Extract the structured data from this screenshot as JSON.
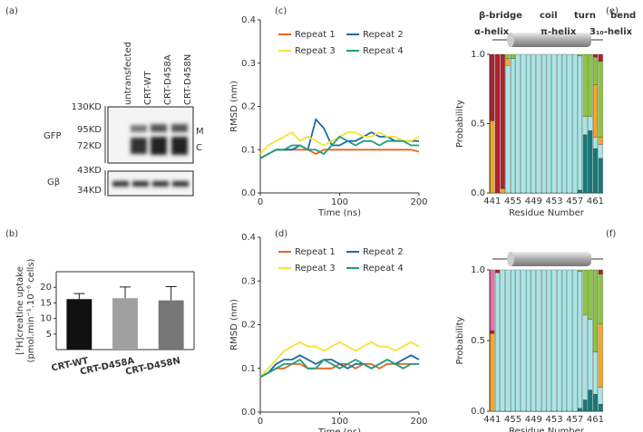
{
  "blot": {
    "panel_label": "(a)",
    "lanes": [
      "untransfected",
      "CRT-WT",
      "CRT-D458A",
      "CRT-D458N"
    ],
    "markers": [
      "130KD",
      "95KD",
      "72KD",
      "43KD",
      "34KD"
    ],
    "rows": [
      "GFP",
      "Gβ"
    ],
    "bands": [
      "M",
      "C"
    ]
  },
  "chart_data": [
    {
      "type": "bar",
      "panel_label": "(b)",
      "y_label": [
        "[³H]creatine uptake",
        "(pmol.min⁻¹.10⁻⁶ cells)"
      ],
      "categories": [
        "CRT-WT",
        "CRT-D458A",
        "CRT-D458N"
      ],
      "values": [
        16.2,
        16.5,
        15.8
      ],
      "errors": [
        1.8,
        3.6,
        4.4
      ],
      "colors": [
        "#111111",
        "#a0a0a0",
        "#767676"
      ],
      "ylim": [
        0,
        25
      ],
      "yticks": [
        5,
        10,
        15,
        20
      ]
    },
    {
      "type": "line",
      "panel_label": "(c)",
      "x_label": "Time (ns)",
      "y_label": "RMSD (nm)",
      "x": [
        0,
        10,
        20,
        30,
        40,
        50,
        60,
        70,
        80,
        90,
        100,
        110,
        120,
        130,
        140,
        150,
        160,
        170,
        180,
        190,
        200
      ],
      "xlim": [
        0,
        200
      ],
      "xticks": [
        0,
        100,
        200
      ],
      "ylim": [
        0,
        0.4
      ],
      "yticks": [
        {
          "value": 0,
          "label": "0.0"
        },
        0.1,
        0.2,
        0.3,
        0.4
      ],
      "series": [
        {
          "name": "Repeat 1",
          "color": "#e8641e",
          "values": [
            0.08,
            0.09,
            0.1,
            0.1,
            0.1,
            0.1,
            0.1,
            0.09,
            0.1,
            0.1,
            0.1,
            0.1,
            0.1,
            0.1,
            0.1,
            0.1,
            0.1,
            0.1,
            0.1,
            0.1,
            0.095
          ]
        },
        {
          "name": "Repeat 2",
          "color": "#1a6aa8",
          "values": [
            0.08,
            0.09,
            0.1,
            0.1,
            0.1,
            0.11,
            0.1,
            0.17,
            0.15,
            0.11,
            0.11,
            0.12,
            0.12,
            0.13,
            0.14,
            0.13,
            0.13,
            0.12,
            0.12,
            0.12,
            0.12
          ]
        },
        {
          "name": "Repeat 3",
          "color": "#f2e339",
          "values": [
            0.09,
            0.11,
            0.12,
            0.13,
            0.14,
            0.12,
            0.13,
            0.12,
            0.11,
            0.12,
            0.13,
            0.14,
            0.14,
            0.13,
            0.13,
            0.14,
            0.13,
            0.13,
            0.12,
            0.12,
            0.13
          ]
        },
        {
          "name": "Repeat 4",
          "color": "#1f9e7a",
          "values": [
            0.08,
            0.09,
            0.1,
            0.1,
            0.11,
            0.11,
            0.1,
            0.1,
            0.09,
            0.11,
            0.13,
            0.12,
            0.11,
            0.12,
            0.12,
            0.11,
            0.12,
            0.12,
            0.12,
            0.11,
            0.11
          ]
        }
      ]
    },
    {
      "type": "line",
      "panel_label": "(d)",
      "x_label": "Time (ns)",
      "y_label": "RMSD (nm)",
      "x": [
        0,
        10,
        20,
        30,
        40,
        50,
        60,
        70,
        80,
        90,
        100,
        110,
        120,
        130,
        140,
        150,
        160,
        170,
        180,
        190,
        200
      ],
      "xlim": [
        0,
        200
      ],
      "xticks": [
        0,
        100,
        200
      ],
      "ylim": [
        0,
        0.4
      ],
      "yticks": [
        {
          "value": 0,
          "label": "0.0"
        },
        0.1,
        0.2,
        0.3,
        0.4
      ],
      "series": [
        {
          "name": "Repeat 1",
          "color": "#e8641e",
          "values": [
            0.08,
            0.09,
            0.1,
            0.1,
            0.11,
            0.11,
            0.1,
            0.1,
            0.1,
            0.1,
            0.11,
            0.11,
            0.1,
            0.11,
            0.11,
            0.1,
            0.11,
            0.11,
            0.11,
            0.11,
            0.11
          ]
        },
        {
          "name": "Repeat 2",
          "color": "#1a6aa8",
          "values": [
            0.08,
            0.09,
            0.11,
            0.12,
            0.12,
            0.13,
            0.12,
            0.11,
            0.12,
            0.12,
            0.11,
            0.1,
            0.11,
            0.11,
            0.1,
            0.11,
            0.12,
            0.11,
            0.12,
            0.13,
            0.12
          ]
        },
        {
          "name": "Repeat 3",
          "color": "#f2e339",
          "values": [
            0.08,
            0.1,
            0.12,
            0.14,
            0.15,
            0.16,
            0.15,
            0.15,
            0.14,
            0.15,
            0.16,
            0.15,
            0.14,
            0.15,
            0.16,
            0.15,
            0.15,
            0.14,
            0.15,
            0.16,
            0.15
          ]
        },
        {
          "name": "Repeat 4",
          "color": "#1f9e7a",
          "values": [
            0.08,
            0.09,
            0.1,
            0.11,
            0.11,
            0.12,
            0.1,
            0.1,
            0.12,
            0.11,
            0.1,
            0.11,
            0.12,
            0.11,
            0.1,
            0.11,
            0.12,
            0.11,
            0.1,
            0.11,
            0.11
          ]
        }
      ]
    },
    {
      "type": "stacked_bar",
      "panel_label": "(e)",
      "x_label": "Residue Number",
      "y_label": "Probability",
      "categories": [
        "441",
        null,
        null,
        null,
        "455",
        null,
        null,
        null,
        "449",
        null,
        null,
        null,
        "453",
        null,
        null,
        null,
        "457",
        null,
        null,
        null,
        "461",
        null
      ],
      "ylim": [
        0,
        1
      ],
      "yticks": [
        {
          "value": 0,
          "label": "0.0"
        },
        0.5,
        {
          "value": 1,
          "label": "1.0"
        }
      ],
      "legend": true,
      "series": [
        {
          "name": "β-bridge",
          "color": "#f06aa8",
          "values": [
            0,
            0,
            0,
            0,
            0,
            0,
            0,
            0,
            0,
            0,
            0,
            0,
            0,
            0,
            0,
            0,
            0,
            0,
            0,
            0,
            0,
            0
          ]
        },
        {
          "name": "coil",
          "color": "#b0202a",
          "values": [
            0.48,
            1,
            0.97,
            0,
            0,
            0,
            0,
            0,
            0,
            0,
            0,
            0,
            0,
            0,
            0,
            0,
            0,
            0,
            0,
            0,
            0.02,
            0.05
          ]
        },
        {
          "name": "turn",
          "color": "#8cc63f",
          "values": [
            0,
            0,
            0,
            0.03,
            0.03,
            0,
            0,
            0,
            0,
            0,
            0,
            0,
            0,
            0,
            0,
            0,
            0,
            0.01,
            0.45,
            0.45,
            0.2,
            0.55
          ]
        },
        {
          "name": "bend",
          "color": "#f5a623",
          "values": [
            0.52,
            0,
            0.03,
            0.05,
            0,
            0,
            0,
            0,
            0,
            0,
            0,
            0,
            0,
            0,
            0,
            0,
            0,
            0,
            0,
            0,
            0.38,
            0.05
          ]
        },
        {
          "name": "α-helix",
          "color": "#a8e6e6",
          "values": [
            0,
            0,
            0,
            0.92,
            0.97,
            1,
            1,
            1,
            1,
            1,
            1,
            1,
            1,
            1,
            1,
            1,
            1,
            0.97,
            0.13,
            0.1,
            0.08,
            0.1
          ]
        },
        {
          "name": "π-helix",
          "color": "#9b4fc8",
          "values": [
            0,
            0,
            0,
            0,
            0,
            0,
            0,
            0,
            0,
            0,
            0,
            0,
            0,
            0,
            0,
            0,
            0,
            0,
            0,
            0,
            0,
            0
          ]
        },
        {
          "name": "3₁₀-helix",
          "color": "#127a7a",
          "values": [
            0,
            0,
            0,
            0,
            0,
            0,
            0,
            0,
            0,
            0,
            0,
            0,
            0,
            0,
            0,
            0,
            0,
            0.02,
            0.42,
            0.45,
            0.32,
            0.25
          ]
        }
      ]
    },
    {
      "type": "stacked_bar",
      "panel_label": "(f)",
      "x_label": "Residue Number",
      "y_label": "Probability",
      "categories": [
        "441",
        null,
        null,
        null,
        "455",
        null,
        null,
        null,
        "449",
        null,
        null,
        null,
        "453",
        null,
        null,
        null,
        "457",
        null,
        null,
        null,
        "461",
        null
      ],
      "ylim": [
        0,
        1
      ],
      "yticks": [
        {
          "value": 0,
          "label": "0.0"
        },
        0.5,
        {
          "value": 1,
          "label": "1.0"
        }
      ],
      "legend": false,
      "series": [
        {
          "color": "#f06aa8",
          "values": [
            0.43,
            0,
            0,
            0,
            0,
            0,
            0,
            0,
            0,
            0,
            0,
            0,
            0,
            0,
            0,
            0,
            0,
            0,
            0,
            0,
            0,
            0
          ]
        },
        {
          "color": "#b0202a",
          "values": [
            0.02,
            0.02,
            0,
            0,
            0,
            0,
            0,
            0,
            0,
            0,
            0,
            0,
            0,
            0,
            0,
            0,
            0,
            0,
            0,
            0,
            0,
            0.03
          ]
        },
        {
          "color": "#8cc63f",
          "values": [
            0,
            0,
            0,
            0,
            0,
            0,
            0,
            0,
            0,
            0,
            0,
            0,
            0,
            0,
            0,
            0,
            0,
            0.01,
            0.32,
            0.35,
            0.58,
            0.35
          ]
        },
        {
          "color": "#f5a623",
          "values": [
            0.55,
            0,
            0,
            0,
            0,
            0,
            0,
            0,
            0,
            0,
            0,
            0,
            0,
            0,
            0,
            0,
            0,
            0,
            0,
            0,
            0,
            0.45
          ]
        },
        {
          "color": "#a8e6e6",
          "values": [
            0,
            0.98,
            1,
            1,
            1,
            1,
            1,
            1,
            1,
            1,
            1,
            1,
            1,
            1,
            1,
            1,
            1,
            0.97,
            0.6,
            0.5,
            0.3,
            0.12
          ]
        },
        {
          "color": "#9b4fc8",
          "values": [
            0,
            0,
            0,
            0,
            0,
            0,
            0,
            0,
            0,
            0,
            0,
            0,
            0,
            0,
            0,
            0,
            0,
            0,
            0,
            0,
            0,
            0
          ]
        },
        {
          "color": "#127a7a",
          "values": [
            0,
            0,
            0,
            0,
            0,
            0,
            0,
            0,
            0,
            0,
            0,
            0,
            0,
            0,
            0,
            0,
            0,
            0.02,
            0.08,
            0.15,
            0.12,
            0.05
          ]
        }
      ]
    }
  ]
}
